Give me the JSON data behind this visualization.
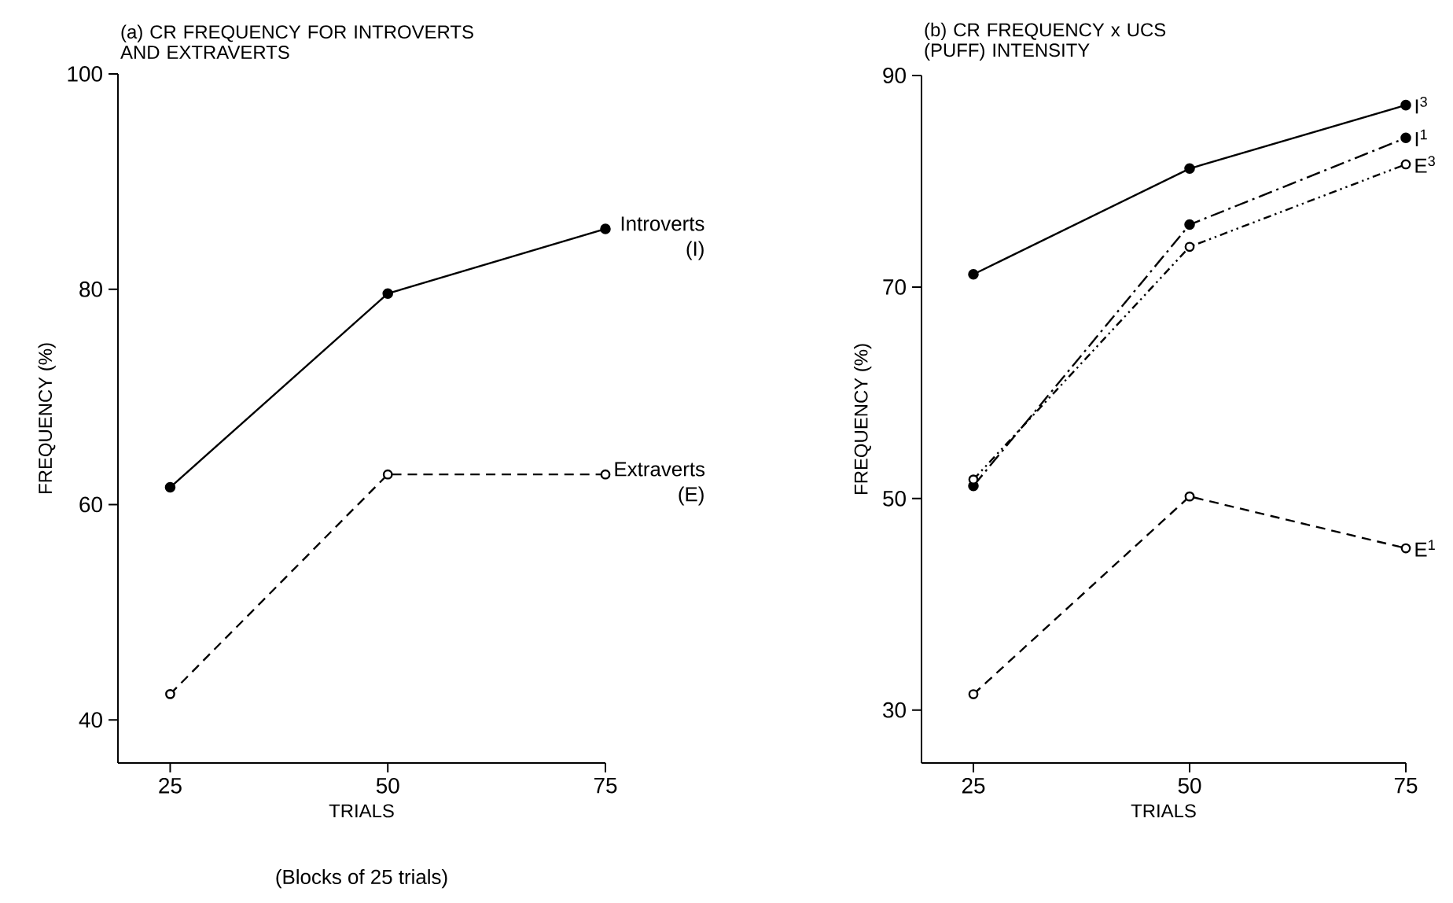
{
  "chart_data": [
    {
      "type": "line",
      "title": "(a) CR FREQUENCY FOR INTROVERTS AND EXTRAVERTS",
      "xlabel": "TRIALS",
      "ylabel": "FREQUENCY (%)",
      "annotations": [
        "(Blocks of 25 trials)"
      ],
      "x": [
        25,
        50,
        75
      ],
      "xlim": [
        19,
        75
      ],
      "xticks": [
        25,
        50,
        75
      ],
      "ylim": [
        36,
        100
      ],
      "yticks": [
        40,
        60,
        80,
        100
      ],
      "series": [
        {
          "name": "Introverts (I)",
          "color": "#000000",
          "values": [
            61.6,
            79.6,
            85.6
          ],
          "marker": "circle",
          "line_style": "solid"
        },
        {
          "name": "Extraverts (E)",
          "color": "#000000",
          "values": [
            42.4,
            62.8,
            62.8
          ],
          "marker": "open circle",
          "line_style": "dashed"
        }
      ]
    },
    {
      "type": "line",
      "title": "(b) CR FREQUENCY x UCS (PUFF) INTENSITY",
      "xlabel": "TRIALS",
      "ylabel": "FREQUENCY (%)",
      "x": [
        25,
        50,
        75
      ],
      "xlim": [
        19,
        75
      ],
      "xticks": [
        25,
        50,
        75
      ],
      "ylim": [
        25,
        90
      ],
      "yticks": [
        30,
        50,
        70,
        90
      ],
      "series": [
        {
          "name": "I$^{3}$",
          "color": "#000000",
          "values": [
            71.2,
            81.2,
            87.2
          ],
          "marker": "circle",
          "line_style": "solid"
        },
        {
          "name": "I$^{1}$",
          "color": "#000000",
          "values": [
            51.2,
            75.9,
            84.1
          ],
          "marker": "circle",
          "line_style": "dashdot"
        },
        {
          "name": "E$^{3}$",
          "color": "#000000",
          "values": [
            51.8,
            73.8,
            81.6
          ],
          "marker": "open circle",
          "line_style": "dashdotdot"
        },
        {
          "name": "E$^{1}$",
          "color": "#000000",
          "values": [
            31.5,
            50.2,
            45.3
          ],
          "marker": "open circle",
          "line_style": "dashed"
        }
      ]
    }
  ]
}
